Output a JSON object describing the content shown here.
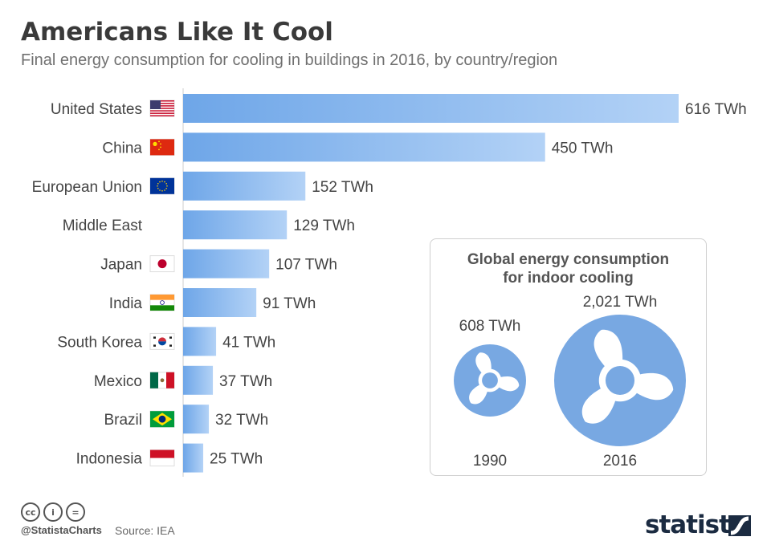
{
  "header": {
    "title": "Americans Like It Cool",
    "subtitle": "Final energy consumption for cooling in buildings in 2016, by country/region"
  },
  "chart_data": [
    {
      "type": "bar",
      "orientation": "horizontal",
      "categories": [
        "United States",
        "China",
        "European Union",
        "Middle East",
        "Japan",
        "India",
        "South Korea",
        "Mexico",
        "Brazil",
        "Indonesia"
      ],
      "values": [
        616,
        450,
        152,
        129,
        107,
        91,
        41,
        37,
        32,
        25
      ],
      "value_labels": [
        "616 TWh",
        "450 TWh",
        "152 TWh",
        "129 TWh",
        "107 TWh",
        "91 TWh",
        "41 TWh",
        "37 TWh",
        "32 TWh",
        "25 TWh"
      ],
      "flags": [
        "us-flag-icon",
        "china-flag-icon",
        "eu-flag-icon",
        null,
        "japan-flag-icon",
        "india-flag-icon",
        "south-korea-flag-icon",
        "mexico-flag-icon",
        "brazil-flag-icon",
        "indonesia-flag-icon"
      ],
      "unit": "TWh",
      "xlim": [
        0,
        616
      ],
      "grid": false,
      "bar_color_start": "#6ea6e8",
      "bar_color_end": "#b3d2f6"
    },
    {
      "type": "pictogram",
      "title_line1": "Global energy consumption",
      "title_line2": "for indoor cooling",
      "categories": [
        "1990",
        "2016"
      ],
      "values": [
        608,
        2021
      ],
      "value_labels": [
        "608 TWh",
        "2,021 TWh"
      ],
      "icon": "fan-icon",
      "color": "#78a8e2"
    }
  ],
  "footer": {
    "cc_icons": [
      "cc",
      "i",
      "="
    ],
    "handle": "@StatistaCharts",
    "source": "Source: IEA",
    "brand": "statista"
  }
}
